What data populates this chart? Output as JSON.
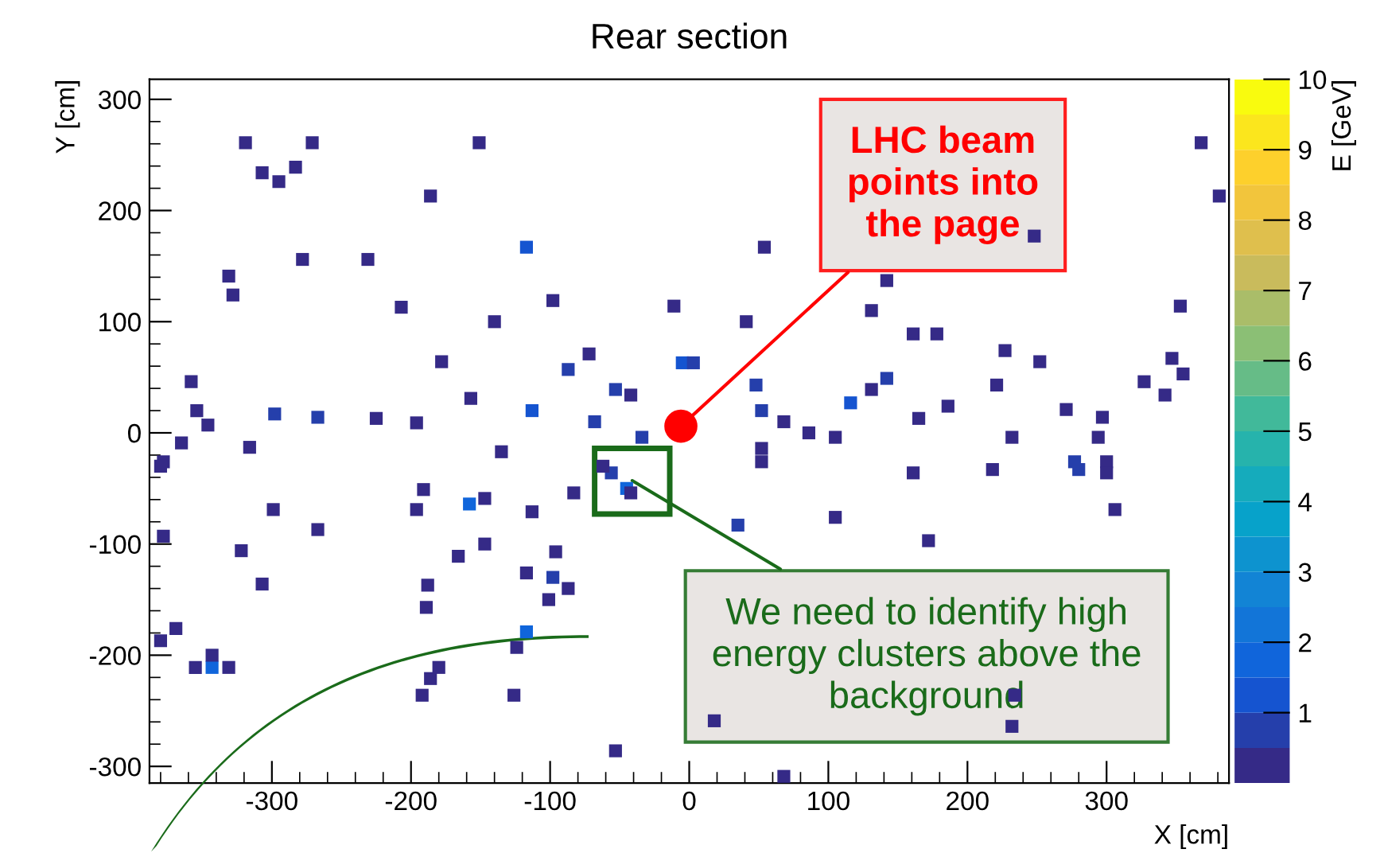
{
  "chart_data": {
    "type": "scatter",
    "title": "Rear section",
    "xlabel": "X [cm]",
    "ylabel": "Y [cm]",
    "clabel": "E [GeV]",
    "xlim": [
      -388,
      388
    ],
    "ylim": [
      -315,
      318
    ],
    "xticks": [
      -300,
      -200,
      -100,
      0,
      100,
      200,
      300
    ],
    "yticks": [
      -300,
      -200,
      -100,
      0,
      100,
      200,
      300
    ],
    "clim": [
      0,
      10
    ],
    "cticks": [
      1,
      2,
      3,
      4,
      5,
      6,
      7,
      8,
      9,
      10
    ],
    "marker": "square",
    "grid": false,
    "x": [
      -319,
      -271,
      -151,
      -307,
      -295,
      -283,
      -186,
      -117,
      -331,
      -328,
      -278,
      -231,
      -207,
      -140,
      -98,
      -11,
      -178,
      -87,
      -72,
      -53,
      -42,
      -5,
      -157,
      -354,
      -346,
      -365,
      -378,
      -358,
      -298,
      -267,
      -225,
      -196,
      -316,
      -135,
      -68,
      -34,
      -113,
      368,
      381,
      248,
      142,
      54,
      131,
      353,
      161,
      178,
      227,
      252,
      347,
      355,
      327,
      342,
      142,
      131,
      116,
      186,
      221,
      165,
      232,
      297,
      294,
      271,
      277,
      300,
      48,
      52,
      68,
      86,
      3,
      41,
      105,
      52,
      -380,
      -378,
      -299,
      -267,
      -322,
      -307,
      -196,
      -191,
      -158,
      -147,
      -113,
      -83,
      -188,
      -189,
      -166,
      -147,
      -117,
      -98,
      -96,
      -101,
      -87,
      -117,
      -124,
      -369,
      -380,
      -343,
      -355,
      -331,
      -343,
      -186,
      -192,
      -180,
      -126,
      -53,
      -56,
      -45,
      -42,
      -62,
      280,
      300,
      306,
      161,
      218,
      52,
      35,
      105,
      68,
      234,
      232,
      18,
      172
    ],
    "values": [
      261,
      261,
      261,
      234,
      226,
      239,
      213,
      167,
      141,
      124,
      156,
      156,
      113,
      100,
      119,
      114,
      64,
      57,
      71,
      39,
      34,
      63,
      31,
      20,
      7,
      -9,
      -26,
      46,
      17,
      14,
      13,
      9,
      -13,
      -17,
      10,
      -4,
      20,
      261,
      213,
      177,
      137,
      167,
      110,
      114,
      89,
      89,
      74,
      64,
      67,
      53,
      46,
      34,
      49,
      39,
      27,
      24,
      43,
      13,
      -4,
      14,
      -4,
      21,
      -26,
      -26,
      43,
      20,
      10,
      0,
      63,
      100,
      -4,
      -14,
      -30,
      -93,
      -69,
      -87,
      -106,
      -136,
      -69,
      -51,
      -64,
      -59,
      -71,
      -54,
      -137,
      -157,
      -111,
      -100,
      -126,
      -130,
      -107,
      -150,
      -140,
      -179,
      -193,
      -176,
      -187,
      -211,
      -211,
      -211,
      -200,
      -221,
      -236,
      -211,
      -236,
      -286,
      -36,
      -50,
      -54,
      -30,
      -33,
      -36,
      -69,
      -36,
      -33,
      -26,
      -83,
      -76,
      -309,
      -236,
      -264,
      -259,
      -97
    ],
    "cvalues": [
      0.3,
      0.3,
      0.3,
      0.3,
      0.3,
      0.3,
      0.3,
      1.2,
      0.3,
      0.3,
      0.3,
      0.3,
      0.3,
      0.3,
      0.3,
      0.3,
      0.3,
      0.5,
      0.3,
      0.8,
      0.3,
      1.0,
      0.3,
      0.3,
      0.3,
      0.3,
      0.3,
      0.3,
      0.5,
      0.5,
      0.3,
      0.3,
      0.3,
      0.3,
      0.5,
      0.5,
      1.2,
      0.3,
      0.3,
      0.3,
      0.3,
      0.3,
      0.3,
      0.3,
      0.3,
      0.3,
      0.3,
      0.3,
      0.3,
      0.3,
      0.3,
      0.3,
      0.5,
      0.3,
      1.0,
      0.3,
      0.3,
      0.3,
      0.3,
      0.3,
      0.3,
      0.3,
      0.5,
      0.3,
      0.5,
      0.5,
      0.3,
      0.3,
      0.5,
      0.3,
      0.3,
      0.3,
      0.3,
      0.3,
      0.3,
      0.3,
      0.3,
      0.3,
      0.3,
      0.3,
      1.5,
      0.3,
      0.3,
      0.3,
      0.3,
      0.3,
      0.3,
      0.3,
      0.3,
      0.5,
      0.3,
      0.3,
      0.3,
      1.8,
      0.3,
      0.3,
      0.3,
      1.8,
      0.3,
      0.3,
      0.3,
      0.3,
      0.3,
      0.3,
      0.3,
      0.3,
      0.5,
      1.5,
      0.3,
      0.3,
      0.8,
      0.3,
      0.3,
      0.3,
      0.3,
      0.3,
      0.5,
      0.3,
      0.3,
      0.3,
      0.3,
      0.3,
      0.3
    ],
    "annotations": [
      {
        "text": "LHC beam points into the page",
        "x": -6,
        "y": 6
      },
      {
        "text": "We need to identify high energy clusters above the background",
        "x": -41,
        "y": -43
      }
    ]
  }
}
